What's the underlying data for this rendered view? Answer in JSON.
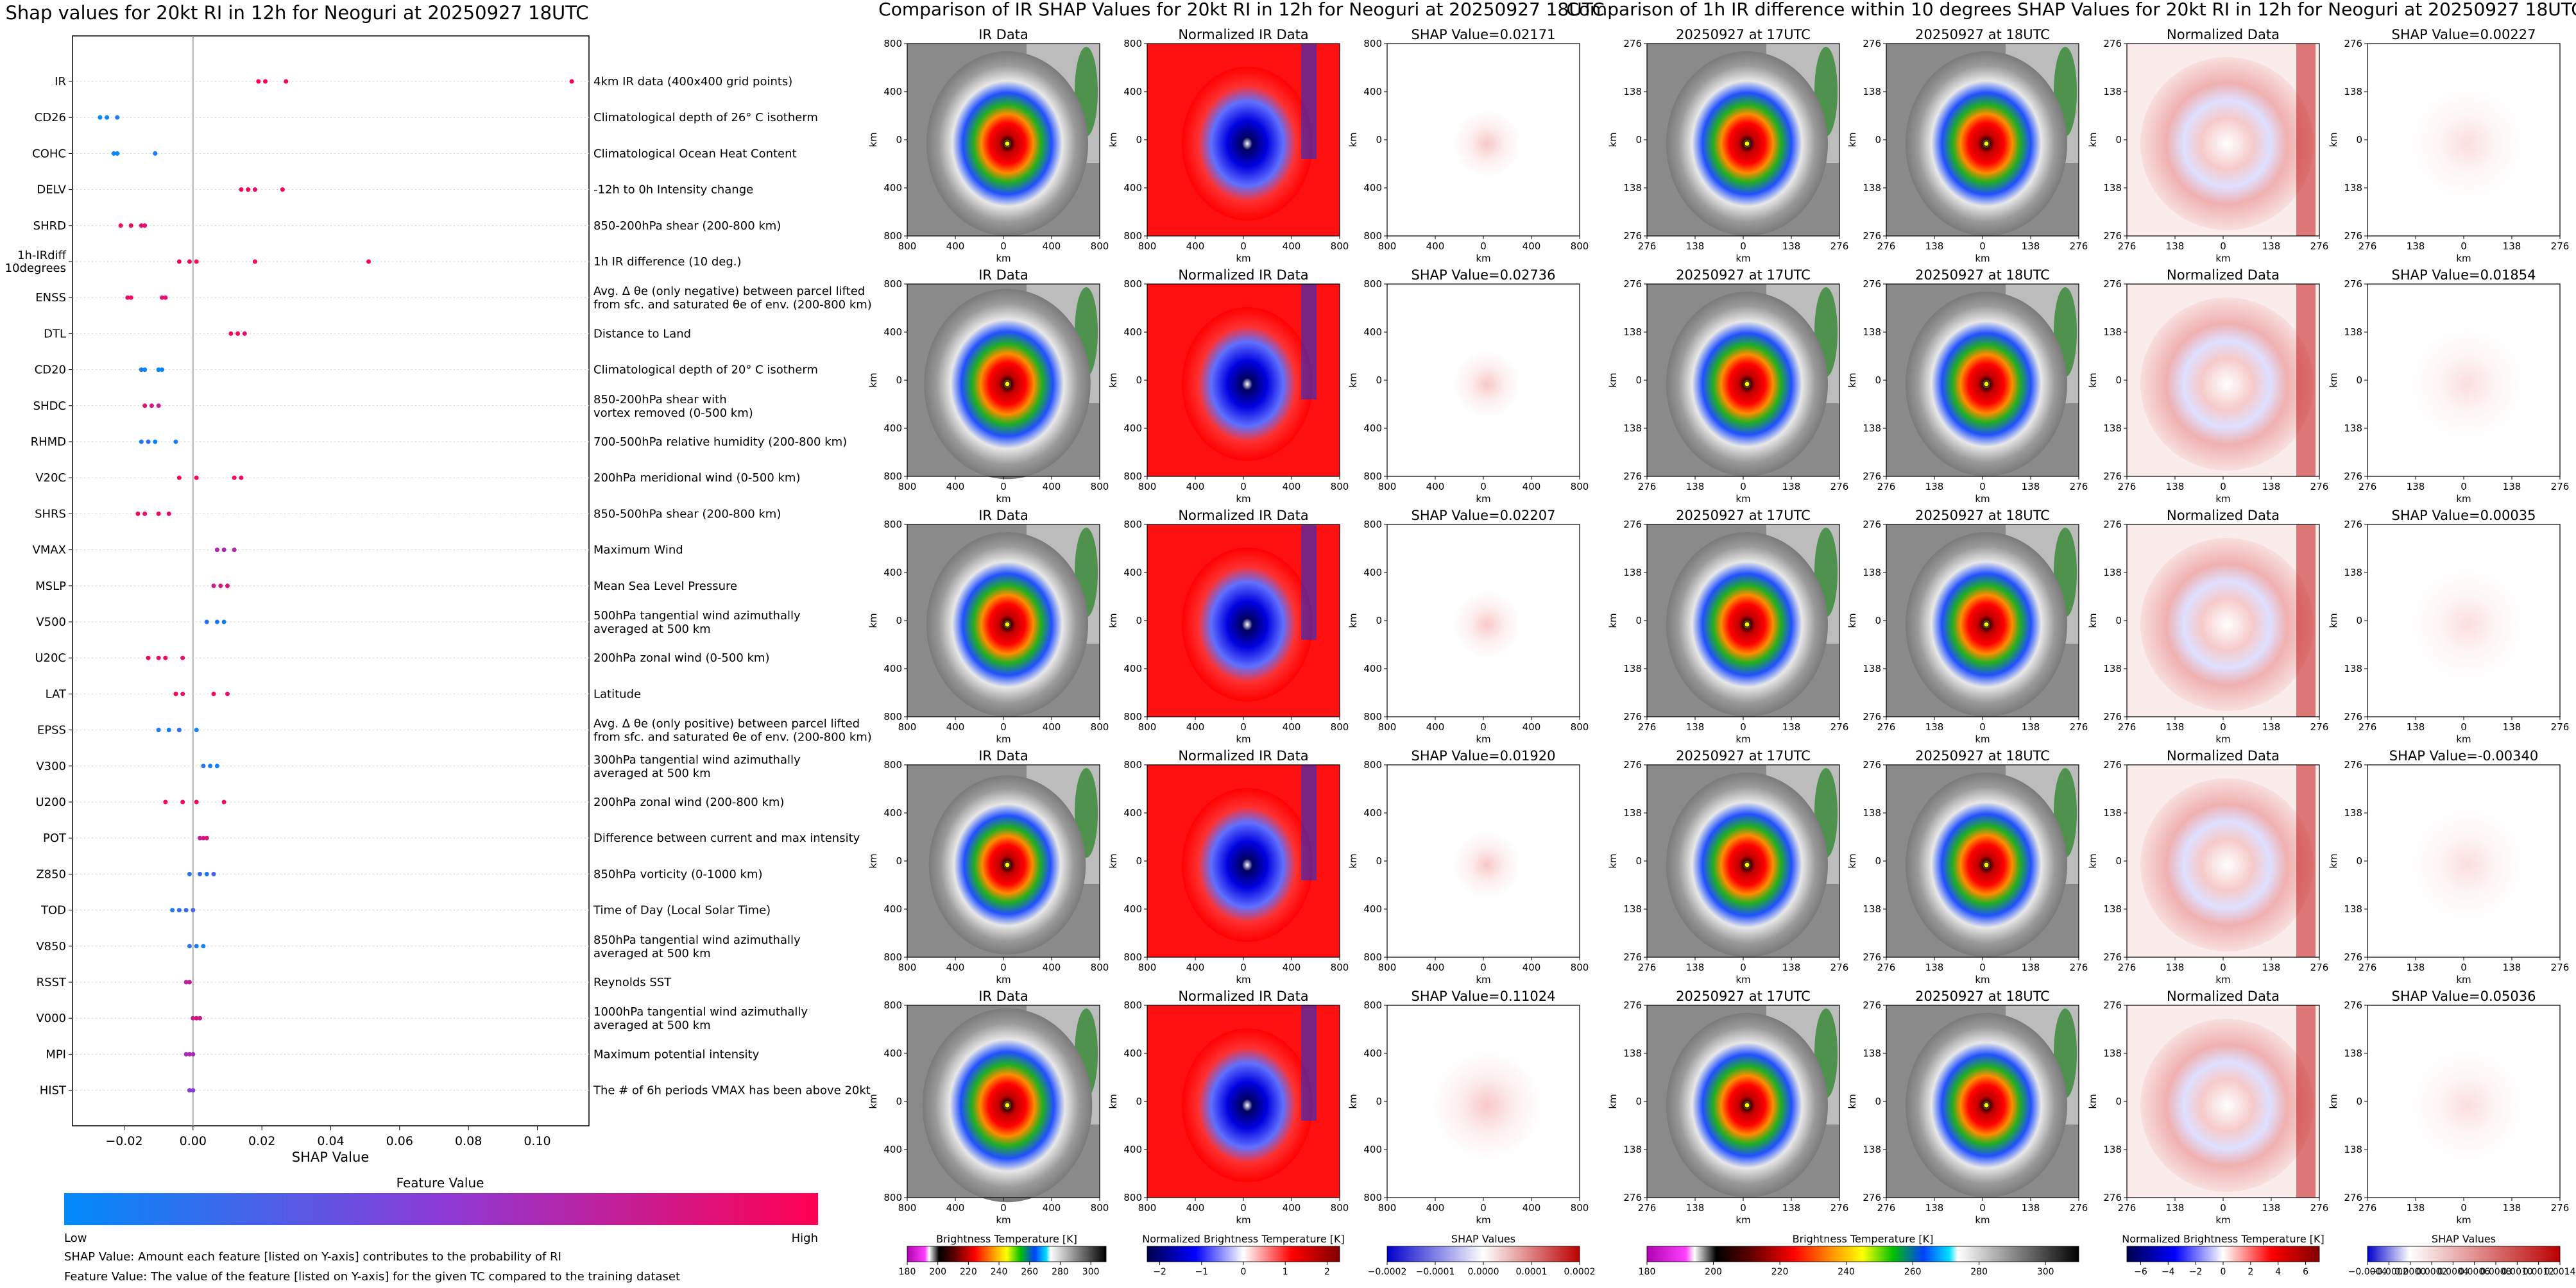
{
  "chart_data": [
    {
      "type": "scatter",
      "title": "Shap values for 20kt RI in 12h for Neoguri at 20250927 18UTC",
      "xlabel": "SHAP Value",
      "xlim": [
        -0.035,
        0.115
      ],
      "xticks": [
        "−0.02",
        "0.00",
        "0.02",
        "0.04",
        "0.06",
        "0.08",
        "0.10"
      ],
      "xtick_values": [
        -0.02,
        0.0,
        0.02,
        0.04,
        0.06,
        0.08,
        0.1
      ],
      "zero_line": true,
      "colorbar": {
        "title": "Feature Value",
        "low": "Low",
        "high": "High",
        "low_color": "#008bfb",
        "high_color": "#ff0052"
      },
      "notes": [
        "SHAP Value: Amount each feature [listed on Y-axis] contributes to the probability of RI",
        "Feature Value: The value of the feature [listed on Y-axis] for the given TC compared to the training dataset"
      ],
      "features": [
        {
          "name": "IR",
          "desc": "4km IR data (400x400 grid points)",
          "points": [
            [
              0.019,
              1.0
            ],
            [
              0.021,
              1.0
            ],
            [
              0.027,
              1.0
            ],
            [
              0.11,
              1.0
            ]
          ]
        },
        {
          "name": "CD26",
          "desc": "Climatological depth of 26° C isotherm",
          "points": [
            [
              -0.027,
              0.0
            ],
            [
              -0.025,
              0.05
            ],
            [
              -0.022,
              0.1
            ]
          ]
        },
        {
          "name": "COHC",
          "desc": "Climatological Ocean Heat Content",
          "points": [
            [
              -0.023,
              0.05
            ],
            [
              -0.022,
              0.0
            ],
            [
              -0.011,
              0.1
            ]
          ]
        },
        {
          "name": "DELV",
          "desc": "-12h to 0h Intensity change",
          "points": [
            [
              0.014,
              0.95
            ],
            [
              0.016,
              0.95
            ],
            [
              0.018,
              0.9
            ],
            [
              0.026,
              1.0
            ]
          ]
        },
        {
          "name": "SHRD",
          "desc": "850-200hPa shear (200-800 km)",
          "points": [
            [
              -0.021,
              0.95
            ],
            [
              -0.018,
              0.95
            ],
            [
              -0.015,
              0.9
            ],
            [
              -0.014,
              0.9
            ]
          ]
        },
        {
          "name": "1h-IRdiff\n10degrees",
          "desc": "1h IR difference (10 deg.)",
          "points": [
            [
              -0.004,
              0.95
            ],
            [
              -0.001,
              0.95
            ],
            [
              0.001,
              0.95
            ],
            [
              0.018,
              1.0
            ],
            [
              0.051,
              1.0
            ]
          ]
        },
        {
          "name": "ENSS",
          "desc": "Avg. Δ θe (only negative) between parcel lifted\nfrom sfc. and saturated θe of env. (200-800 km)",
          "points": [
            [
              -0.019,
              0.9
            ],
            [
              -0.018,
              0.95
            ],
            [
              -0.009,
              0.9
            ],
            [
              -0.008,
              0.9
            ]
          ]
        },
        {
          "name": "DTL",
          "desc": "Distance to Land",
          "points": [
            [
              0.011,
              0.95
            ],
            [
              0.013,
              0.95
            ],
            [
              0.015,
              0.9
            ]
          ]
        },
        {
          "name": "CD20",
          "desc": "Climatological depth of 20° C isotherm",
          "points": [
            [
              -0.015,
              0.1
            ],
            [
              -0.014,
              0.05
            ],
            [
              -0.01,
              0.0
            ],
            [
              -0.009,
              0.05
            ]
          ]
        },
        {
          "name": "SHDC",
          "desc": "850-200hPa shear with\nvortex removed (0-500 km)",
          "points": [
            [
              -0.014,
              0.85
            ],
            [
              -0.012,
              0.8
            ],
            [
              -0.01,
              0.75
            ]
          ]
        },
        {
          "name": "RHMD",
          "desc": "700-500hPa relative humidity (200-800 km)",
          "points": [
            [
              -0.015,
              0.1
            ],
            [
              -0.013,
              0.15
            ],
            [
              -0.011,
              0.05
            ],
            [
              -0.005,
              0.1
            ]
          ]
        },
        {
          "name": "V20C",
          "desc": "200hPa meridional wind (0-500 km)",
          "points": [
            [
              -0.004,
              0.95
            ],
            [
              0.001,
              0.95
            ],
            [
              0.012,
              0.95
            ],
            [
              0.014,
              0.9
            ]
          ]
        },
        {
          "name": "SHRS",
          "desc": "850-500hPa shear (200-800 km)",
          "points": [
            [
              -0.016,
              0.95
            ],
            [
              -0.014,
              0.9
            ],
            [
              -0.01,
              0.95
            ],
            [
              -0.007,
              0.9
            ]
          ]
        },
        {
          "name": "VMAX",
          "desc": "Maximum Wind",
          "points": [
            [
              0.007,
              0.65
            ],
            [
              0.009,
              0.65
            ],
            [
              0.012,
              0.7
            ]
          ]
        },
        {
          "name": "MSLP",
          "desc": "Mean Sea Level Pressure",
          "points": [
            [
              0.006,
              0.8
            ],
            [
              0.008,
              0.8
            ],
            [
              0.01,
              0.85
            ]
          ]
        },
        {
          "name": "V500",
          "desc": "500hPa tangential wind azimuthally\naveraged at 500 km",
          "points": [
            [
              0.004,
              0.15
            ],
            [
              0.007,
              0.1
            ],
            [
              0.009,
              0.05
            ]
          ]
        },
        {
          "name": "U20C",
          "desc": "200hPa zonal wind (0-500 km)",
          "points": [
            [
              -0.013,
              0.95
            ],
            [
              -0.01,
              0.9
            ],
            [
              -0.008,
              0.95
            ],
            [
              -0.003,
              0.9
            ]
          ]
        },
        {
          "name": "LAT",
          "desc": "Latitude",
          "points": [
            [
              -0.005,
              0.95
            ],
            [
              -0.003,
              0.9
            ],
            [
              0.006,
              0.95
            ],
            [
              0.01,
              0.9
            ]
          ]
        },
        {
          "name": "EPSS",
          "desc": "Avg. Δ θe (only positive) between parcel lifted\nfrom sfc. and saturated θe of env. (200-800 km)",
          "points": [
            [
              -0.01,
              0.1
            ],
            [
              -0.007,
              0.05
            ],
            [
              -0.004,
              0.15
            ],
            [
              0.001,
              0.05
            ]
          ]
        },
        {
          "name": "V300",
          "desc": "300hPa tangential wind azimuthally\naveraged at 500 km",
          "points": [
            [
              0.003,
              0.15
            ],
            [
              0.005,
              0.1
            ],
            [
              0.007,
              0.05
            ]
          ]
        },
        {
          "name": "U200",
          "desc": "200hPa zonal wind (200-800 km)",
          "points": [
            [
              -0.008,
              0.95
            ],
            [
              -0.003,
              0.9
            ],
            [
              0.001,
              0.95
            ],
            [
              0.009,
              0.9
            ]
          ]
        },
        {
          "name": "POT",
          "desc": "Difference between current and max intensity",
          "points": [
            [
              0.002,
              0.75
            ],
            [
              0.003,
              0.8
            ],
            [
              0.004,
              0.85
            ]
          ]
        },
        {
          "name": "Z850",
          "desc": "850hPa vorticity (0-1000 km)",
          "points": [
            [
              -0.001,
              0.15
            ],
            [
              0.002,
              0.2
            ],
            [
              0.004,
              0.1
            ],
            [
              0.006,
              0.25
            ]
          ]
        },
        {
          "name": "TOD",
          "desc": "Time of Day (Local Solar Time)",
          "points": [
            [
              -0.006,
              0.1
            ],
            [
              -0.004,
              0.15
            ],
            [
              -0.002,
              0.2
            ],
            [
              0.0,
              0.25
            ]
          ]
        },
        {
          "name": "V850",
          "desc": "850hPa tangential wind azimuthally\naveraged at 500 km",
          "points": [
            [
              -0.001,
              0.15
            ],
            [
              0.001,
              0.1
            ],
            [
              0.003,
              0.05
            ]
          ]
        },
        {
          "name": "RSST",
          "desc": "Reynolds SST",
          "points": [
            [
              -0.002,
              0.7
            ],
            [
              -0.001,
              0.75
            ]
          ]
        },
        {
          "name": "V000",
          "desc": "1000hPa tangential wind azimuthally\naveraged at 500 km",
          "points": [
            [
              0.0,
              0.8
            ],
            [
              0.001,
              0.85
            ],
            [
              0.002,
              0.8
            ]
          ]
        },
        {
          "name": "MPI",
          "desc": "Maximum potential intensity",
          "points": [
            [
              -0.002,
              0.6
            ],
            [
              -0.001,
              0.65
            ],
            [
              0.0,
              0.6
            ]
          ]
        },
        {
          "name": "HIST",
          "desc": "The # of 6h periods VMAX has been above 20kt",
          "points": [
            [
              -0.001,
              0.5
            ],
            [
              0.0,
              0.5
            ]
          ]
        }
      ]
    },
    {
      "type": "heatmap",
      "title": "Comparison of IR SHAP Values for 20kt RI in 12h for Neoguri at 20250927 18UTC",
      "xlabel": "km",
      "ylabel": "km",
      "xticks": [
        "800",
        "400",
        "0",
        "400",
        "800"
      ],
      "yticks": [
        "800",
        "400",
        "0",
        "400",
        "800"
      ],
      "column_titles": [
        "IR Data",
        "Normalized IR Data"
      ],
      "shap_titles": [
        "SHAP Value=0.02171",
        "SHAP Value=0.02736",
        "SHAP Value=0.02207",
        "SHAP Value=0.01920",
        "SHAP Value=0.11024"
      ],
      "colorbars": [
        {
          "label": "Brightness Temperature [K]",
          "ticks": [
            "180",
            "200",
            "220",
            "240",
            "260",
            "280",
            "300"
          ],
          "range": [
            180,
            310
          ]
        },
        {
          "label": "Normalized Brightness Temperature [K]",
          "ticks": [
            "−2",
            "−1",
            "0",
            "1",
            "2"
          ],
          "range": [
            -2.3,
            2.3
          ]
        },
        {
          "label": "SHAP Values",
          "ticks": [
            "−0.0002",
            "−0.0001",
            "0.0000",
            "0.0001",
            "0.0002"
          ],
          "range": [
            -0.0002,
            0.0002
          ]
        }
      ]
    },
    {
      "type": "heatmap",
      "title": "Comparison of 1h IR difference within 10 degrees SHAP Values for 20kt RI in 12h for Neoguri at 20250927 18UTC",
      "xlabel": "km",
      "ylabel": "km",
      "xticks": [
        "276",
        "138",
        "0",
        "138",
        "276"
      ],
      "yticks": [
        "276",
        "138",
        "0",
        "138",
        "276"
      ],
      "column_titles": [
        "20250927 at 17UTC",
        "20250927 at 18UTC",
        "Normalized Data"
      ],
      "shap_titles": [
        "SHAP Value=0.00227",
        "SHAP Value=0.01854",
        "SHAP Value=0.00035",
        "SHAP Value=-0.00340",
        "SHAP Value=0.05036"
      ],
      "colorbars": [
        {
          "label": "Brightness Temperature [K]",
          "ticks": [
            "180",
            "200",
            "220",
            "240",
            "260",
            "280",
            "300"
          ],
          "range": [
            180,
            310
          ]
        },
        {
          "label": "Normalized Brightness Temperature [K]",
          "ticks": [
            "−6",
            "−4",
            "−2",
            "0",
            "2",
            "4",
            "6"
          ],
          "range": [
            -7,
            7
          ]
        },
        {
          "label": "SHAP Values",
          "ticks": [
            "−0.0004",
            "−0.0002",
            "0.0000",
            "0.0002",
            "0.0004",
            "0.0006",
            "0.0008",
            "0.0010",
            "0.0012",
            "0.0014"
          ],
          "range": [
            -0.0004,
            0.0014
          ]
        }
      ]
    }
  ]
}
